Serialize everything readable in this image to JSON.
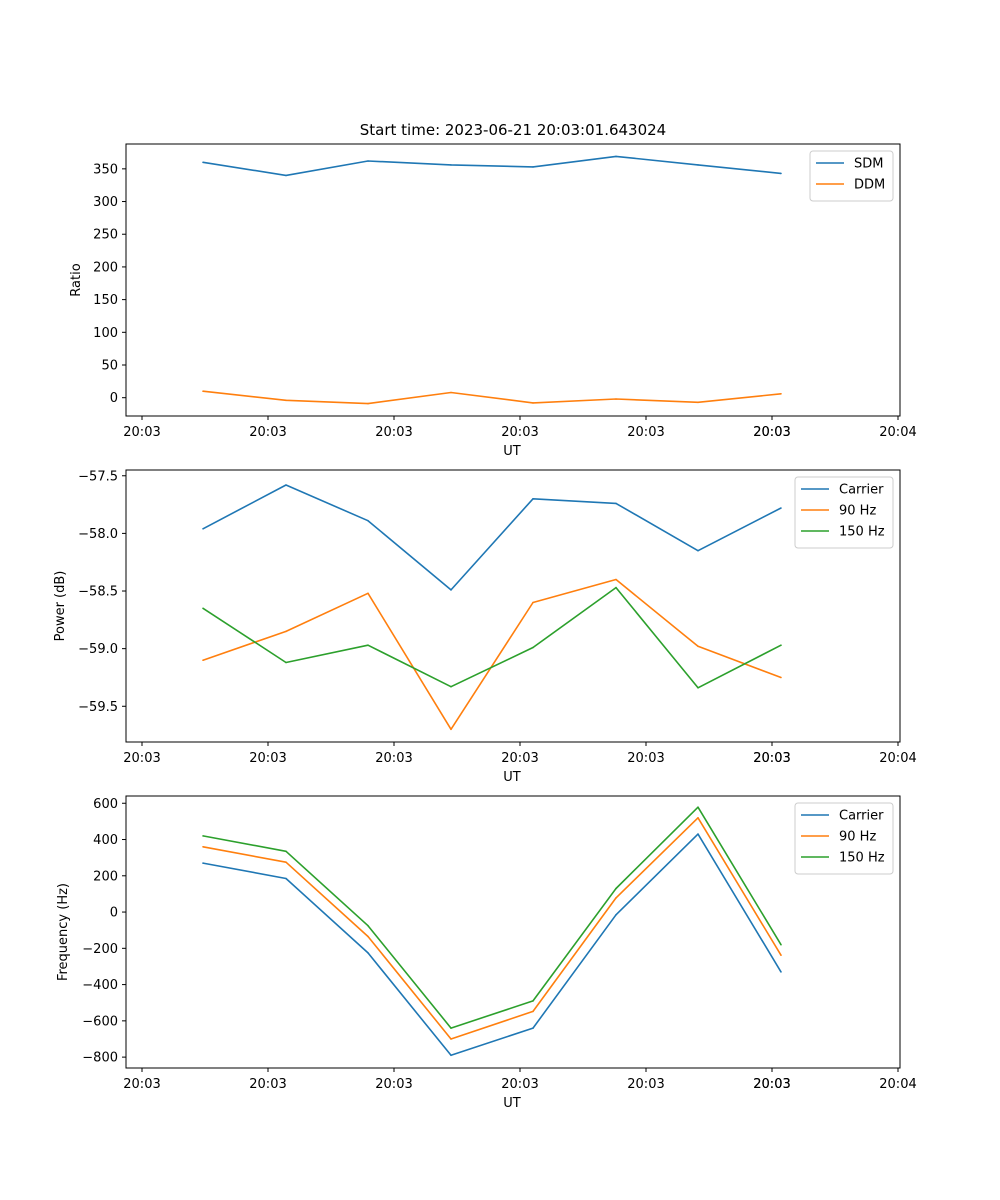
{
  "chart_data": [
    {
      "type": "line",
      "title": "Start time: 2023-06-21 20:03:01.643024",
      "xlabel": "UT",
      "ylabel": "Ratio",
      "x_tick_labels": [
        "20:03",
        "20:03",
        "20:03",
        "20:03",
        "20:03",
        "20:03",
        "20:03",
        "20:04"
      ],
      "y_ticks": [
        0,
        50,
        100,
        150,
        200,
        250,
        300,
        350
      ],
      "ylim": [
        -28,
        388
      ],
      "legend_position": "upper-right",
      "series": [
        {
          "name": "SDM",
          "color": "#1f77b4",
          "values": [
            360,
            340,
            362,
            356,
            353,
            369,
            356,
            343
          ]
        },
        {
          "name": "DDM",
          "color": "#ff7f0e",
          "values": [
            10,
            -4,
            -9,
            8,
            -8,
            -2,
            -7,
            6
          ]
        }
      ]
    },
    {
      "type": "line",
      "title": "",
      "xlabel": "UT",
      "ylabel": "Power (dB)",
      "x_tick_labels": [
        "20:03",
        "20:03",
        "20:03",
        "20:03",
        "20:03",
        "20:03",
        "20:03",
        "20:04"
      ],
      "y_ticks": [
        -57.5,
        -58.0,
        -58.5,
        -59.0,
        -59.5
      ],
      "ylim": [
        -59.81,
        -57.45
      ],
      "legend_position": "upper-right",
      "series": [
        {
          "name": "Carrier",
          "color": "#1f77b4",
          "values": [
            -57.96,
            -57.58,
            -57.89,
            -58.49,
            -57.7,
            -57.74,
            -58.15,
            -57.78
          ]
        },
        {
          "name": "90 Hz",
          "color": "#ff7f0e",
          "values": [
            -59.1,
            -58.85,
            -58.52,
            -59.7,
            -58.6,
            -58.4,
            -58.98,
            -59.25
          ]
        },
        {
          "name": "150 Hz",
          "color": "#2ca02c",
          "values": [
            -58.65,
            -59.12,
            -58.97,
            -59.33,
            -58.99,
            -58.47,
            -59.34,
            -58.97
          ]
        }
      ]
    },
    {
      "type": "line",
      "title": "",
      "xlabel": "UT",
      "ylabel": "Frequency (Hz)",
      "x_tick_labels": [
        "20:03",
        "20:03",
        "20:03",
        "20:03",
        "20:03",
        "20:03",
        "20:03",
        "20:04"
      ],
      "y_ticks": [
        600,
        400,
        200,
        0,
        -200,
        -400,
        -600,
        -800
      ],
      "ylim": [
        -860,
        640
      ],
      "legend_position": "upper-right",
      "series": [
        {
          "name": "Carrier",
          "color": "#1f77b4",
          "values": [
            270,
            185,
            -225,
            -790,
            -640,
            -15,
            430,
            -330
          ]
        },
        {
          "name": "90 Hz",
          "color": "#ff7f0e",
          "values": [
            360,
            275,
            -135,
            -700,
            -548,
            78,
            520,
            -238
          ]
        },
        {
          "name": "150 Hz",
          "color": "#2ca02c",
          "values": [
            420,
            335,
            -75,
            -640,
            -490,
            130,
            578,
            -180
          ]
        }
      ]
    }
  ]
}
